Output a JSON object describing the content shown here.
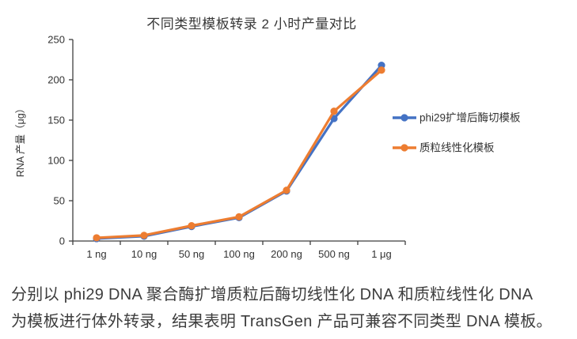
{
  "chart": {
    "title": "不同类型模板转录 2 小时产量对比"
  },
  "chart_data": {
    "type": "line",
    "title": "不同类型模板转录 2 小时产量对比",
    "categories": [
      "1 ng",
      "10 ng",
      "50 ng",
      "100 ng",
      "200 ng",
      "500 ng",
      "1 μg"
    ],
    "series": [
      {
        "name": "phi29扩增后酶切模板",
        "color": "#4472C4",
        "values": [
          3,
          6,
          18,
          29,
          62,
          152,
          218
        ]
      },
      {
        "name": "质粒线性化模板",
        "color": "#ED7D31",
        "values": [
          4,
          7,
          19,
          30,
          63,
          161,
          212
        ]
      }
    ],
    "xlabel": "",
    "ylabel": "RNA 产量（μg）",
    "ylim": [
      0,
      250
    ],
    "yticks": [
      0,
      50,
      100,
      150,
      200,
      250
    ],
    "grid": false,
    "legend_position": "right",
    "axis_color": "#3f3f3f"
  },
  "caption": {
    "line1": "分别以 phi29 DNA 聚合酶扩增质粒后酶切线性化 DNA 和质粒线性化 DNA",
    "line2": "为模板进行体外转录，结果表明 TransGen 产品可兼容不同类型 DNA 模板。"
  }
}
